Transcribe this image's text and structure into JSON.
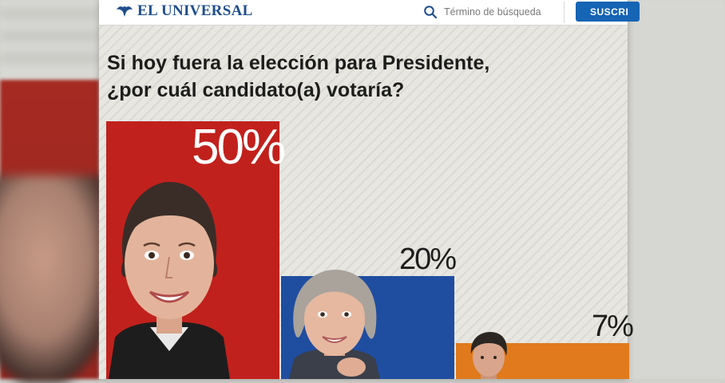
{
  "header": {
    "logo_text": "EL UNIVERSAL",
    "search_placeholder": "Término de búsqueda",
    "subscribe_label": "SUSCRI"
  },
  "colors": {
    "bar_1": "#c1211d",
    "bar_2": "#1f4da0",
    "bar_3": "#e07a1c",
    "brand": "#1f4e8c",
    "subscribe": "#1664b4"
  },
  "chart_data": {
    "type": "bar",
    "title_lines": [
      "Si hoy fuera la elección para Presidente,",
      "¿por cuál candidato(a) votaría?"
    ],
    "values": [
      50,
      20,
      7
    ],
    "value_labels": [
      "50%",
      "20%",
      "7%"
    ],
    "ylim": [
      0,
      50
    ],
    "grid": false
  }
}
